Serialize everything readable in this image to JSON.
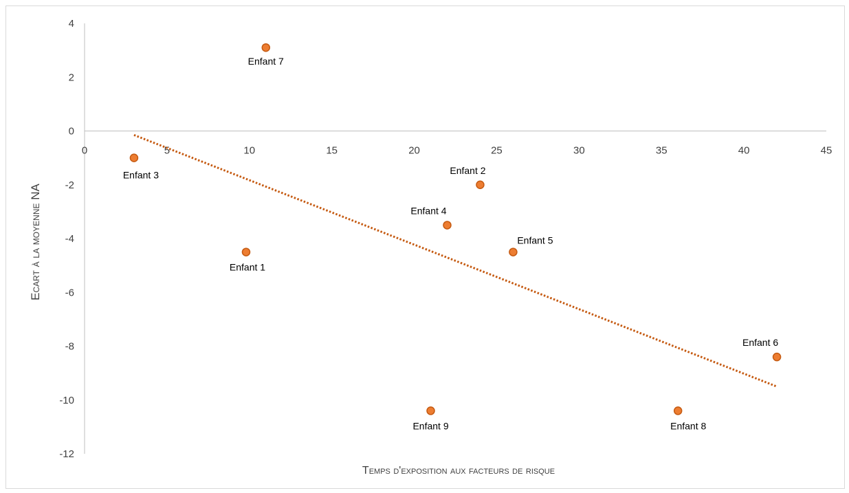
{
  "chart_data": {
    "type": "scatter",
    "title": "",
    "xlabel": "Temps d'exposition aux facteurs de risque",
    "ylabel": "Ecart à la moyenne NA",
    "xlim": [
      0,
      45
    ],
    "ylim": [
      -12,
      4
    ],
    "x_ticks": [
      "0",
      "5",
      "10",
      "15",
      "20",
      "25",
      "30",
      "35",
      "40",
      "45"
    ],
    "y_ticks": [
      "4",
      "2",
      "0",
      "-2",
      "-4",
      "-6",
      "-8",
      "-10",
      "-12"
    ],
    "grid": false,
    "legend": "none",
    "marker_color": "#ed7d31",
    "marker_edge_color": "#c55a11",
    "trendline_color": "#c55a11",
    "trendline": {
      "type": "linear",
      "x": [
        3,
        42
      ],
      "y": [
        -0.15,
        -9.5
      ]
    },
    "points": [
      {
        "label": "Enfant 1",
        "x": 9.8,
        "y": -4.5
      },
      {
        "label": "Enfant 2",
        "x": 24,
        "y": -2
      },
      {
        "label": "Enfant 3",
        "x": 3,
        "y": -1
      },
      {
        "label": "Enfant 4",
        "x": 22,
        "y": -3.5
      },
      {
        "label": "Enfant 5",
        "x": 26,
        "y": -4.5
      },
      {
        "label": "Enfant 6",
        "x": 42,
        "y": -8.4
      },
      {
        "label": "Enfant 7",
        "x": 11,
        "y": 3.1
      },
      {
        "label": "Enfant 8",
        "x": 36,
        "y": -10.4
      },
      {
        "label": "Enfant 9",
        "x": 21,
        "y": -10.4
      }
    ]
  }
}
